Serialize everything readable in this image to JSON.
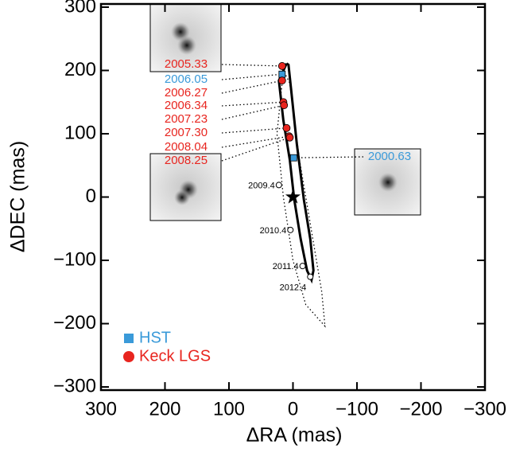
{
  "chart_data": {
    "type": "scatter",
    "xlabel": "ΔRA (mas)",
    "ylabel": "ΔDEC (mas)",
    "xlim": [
      300,
      -300
    ],
    "ylim": [
      -305,
      305
    ],
    "xticks": [
      300,
      200,
      100,
      0,
      {
        "value": -100,
        "label": "−100"
      },
      {
        "value": -200,
        "label": "−200"
      },
      {
        "value": -300,
        "label": "−300"
      }
    ],
    "yticks": [
      300,
      200,
      100,
      0,
      {
        "value": -100,
        "label": "−100"
      },
      {
        "value": -200,
        "label": "−200"
      },
      {
        "value": -300,
        "label": "−300"
      }
    ],
    "series": [
      {
        "name": "HST",
        "color": "#3a9ad9",
        "marker": "square",
        "x": [
          -1,
          17
        ],
        "y": [
          62,
          194
        ],
        "labels": [
          "2000.63",
          "2006.05"
        ]
      },
      {
        "name": "Keck LGS",
        "color": "#e8251f",
        "marker": "circle",
        "x": [
          17,
          17,
          15,
          14,
          10,
          6,
          5
        ],
        "y": [
          207,
          184,
          150,
          145,
          109,
          96,
          94
        ],
        "labels": [
          "2005.33",
          "2006.27",
          "2006.34",
          "2007.23",
          "2007.30",
          "2008.04",
          "2008.25"
        ]
      }
    ],
    "predicted": {
      "x": [
        22,
        4,
        -15,
        -27
      ],
      "y": [
        19,
        -52,
        -109,
        -126
      ],
      "labels": [
        "2009.4",
        "2010.4",
        "2011.4",
        "2012.4"
      ]
    },
    "primary": {
      "x": [
        0
      ],
      "y": [
        0
      ]
    },
    "orbit": {
      "x": [
        10,
        22,
        15,
        5,
        -2,
        -12,
        -22,
        -29,
        -32,
        -27,
        -17,
        -6,
        3,
        7,
        10
      ],
      "y": [
        211,
        184,
        121,
        59,
        -4,
        -66,
        -116,
        -131,
        -116,
        -66,
        -4,
        84,
        171,
        209,
        211
      ]
    },
    "orbit_alt": {
      "x": [
        15,
        25,
        15,
        0,
        -20,
        -50,
        -45,
        -30,
        -10,
        5,
        15
      ],
      "y": [
        200,
        100,
        0,
        -100,
        -170,
        -204,
        -150,
        -60,
        60,
        180,
        200
      ]
    }
  }
}
